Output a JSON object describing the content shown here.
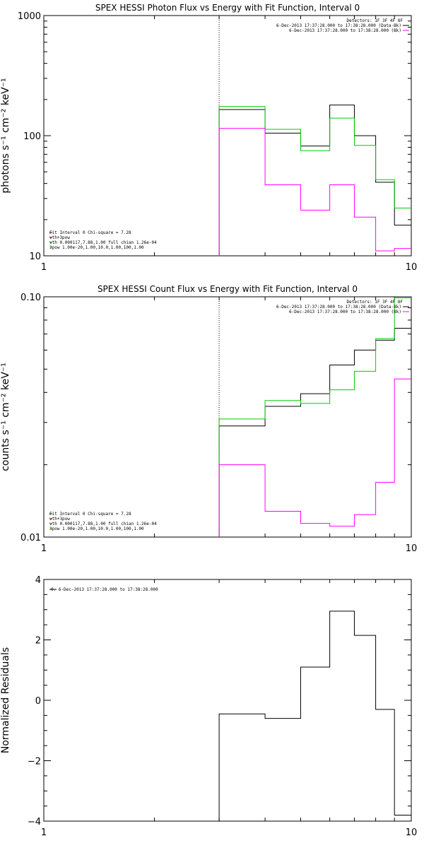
{
  "chart_data": [
    {
      "type": "line",
      "title": "SPEX HESSI Photon Flux vs Energy with Fit Function, Interval 0",
      "xlabel": "",
      "ylabel": "photons s⁻¹ cm⁻² keV⁻¹",
      "xlim": [
        1,
        10
      ],
      "ylim": [
        10,
        1000
      ],
      "xscale": "log",
      "yscale": "log",
      "x_ticks": [
        "1",
        "10"
      ],
      "y_ticks": [
        {
          "value": 10,
          "label": "10"
        },
        {
          "value": 100,
          "label": "100"
        },
        {
          "value": 1000,
          "label": "1000"
        }
      ],
      "vline_x": 3.0,
      "legend_header": "Detectors: 1F 3F 4F 8F",
      "legend": [
        {
          "text": "6-Dec-2013 17:37:28.000 to 17:38:28.000 (Data-Bk)",
          "color": "#000000"
        },
        {
          "text": "6-Dec-2013 17:37:28.000 to 17:38:28.000 (Bk)",
          "color": "#ff00ff"
        }
      ],
      "fit_info": [
        {
          "text": "Fit Interval 0   Chi-square = 7.28",
          "color": "#000000"
        },
        {
          "text": "vth+3pow",
          "color": "#ff0000"
        },
        {
          "text": "vth 0.000117,7.88,1.00  full chian 1.26e-04",
          "color": "#00cc00"
        },
        {
          "text": "3pow 1.00e-20,1.00,10.0,1.00,100,1.00",
          "color": "#cccc00"
        }
      ],
      "bin_edges": [
        3.0,
        4.0,
        5.0,
        6.0,
        7.0,
        8.0,
        9.0,
        10.0
      ],
      "series": [
        {
          "name": "6-Dec-2013 17:37:28.000 to 17:38:28.000 (Data-Bk)",
          "color": "#000000",
          "values": [
            165,
            105,
            82,
            180,
            100,
            41,
            18
          ]
        },
        {
          "name": "vth+3pow",
          "color": "#00cc00",
          "values": [
            175,
            113,
            75,
            140,
            83,
            43,
            25
          ]
        },
        {
          "name": "6-Dec-2013 17:37:28.000 to 17:38:28.000 (Bk)",
          "color": "#ff00ff",
          "values": [
            115,
            39,
            24,
            39,
            21,
            11,
            11.5
          ]
        }
      ]
    },
    {
      "type": "line",
      "title": "SPEX HESSI Count Flux vs Energy with Fit Function, Interval 0",
      "xlabel": "",
      "ylabel": "counts s⁻¹ cm⁻² keV⁻¹",
      "xlim": [
        1,
        10
      ],
      "ylim": [
        0.01,
        0.1
      ],
      "xscale": "log",
      "yscale": "log",
      "x_ticks": [
        "1",
        "10"
      ],
      "y_ticks": [
        {
          "value": 0.01,
          "label": "0.01"
        },
        {
          "value": 0.1,
          "label": "0.10"
        }
      ],
      "vline_x": 3.0,
      "legend_header": "Detectors: 1F 3F 4F 8F",
      "legend": [
        {
          "text": "6-Dec-2013 17:37:28.000 to 17:38:28.000 (Data-Bk)",
          "color": "#000000"
        },
        {
          "text": "6-Dec-2013 17:37:28.000 to 17:38:28.000 (Bk)",
          "color": "#ff00ff"
        }
      ],
      "fit_info": [
        {
          "text": "Fit Interval 0   Chi-square = 7.28",
          "color": "#000000"
        },
        {
          "text": "vth+3pow",
          "color": "#ff0000"
        },
        {
          "text": "vth 0.000117,7.88,1.00  full chian 1.26e-04",
          "color": "#00cc00"
        },
        {
          "text": "3pow 1.00e-20,1.00,10.0,1.00,100,1.00",
          "color": "#cccc00"
        }
      ],
      "bin_edges": [
        3.0,
        4.0,
        5.0,
        6.0,
        7.0,
        8.0,
        9.0,
        10.0
      ],
      "series": [
        {
          "name": "6-Dec-2013 17:37:28.000 to 17:38:28.000 (Data-Bk)",
          "color": "#000000",
          "values": [
            0.029,
            0.035,
            0.0395,
            0.052,
            0.06,
            0.066,
            0.074
          ]
        },
        {
          "name": "vth+3pow",
          "color": "#00cc00",
          "values": [
            0.031,
            0.037,
            0.036,
            0.041,
            0.049,
            0.067,
            0.099
          ]
        },
        {
          "name": "6-Dec-2013 17:37:28.000 to 17:38:28.000 (Bk)",
          "color": "#ff00ff",
          "values": [
            0.02,
            0.0128,
            0.0114,
            0.0111,
            0.0124,
            0.0169,
            0.0455
          ]
        }
      ]
    },
    {
      "type": "line",
      "title": "",
      "xlabel": "",
      "ylabel": "Normalized Residuals",
      "xlim": [
        1,
        10
      ],
      "ylim": [
        -4,
        4
      ],
      "xscale": "log",
      "yscale": "linear",
      "x_ticks": [
        "1",
        "10"
      ],
      "y_ticks": [
        {
          "value": -4,
          "label": "−4"
        },
        {
          "value": -2,
          "label": "−2"
        },
        {
          "value": 0,
          "label": "0"
        },
        {
          "value": 2,
          "label": "2"
        },
        {
          "value": 4,
          "label": "4"
        }
      ],
      "legend": [
        {
          "text": "0.  6-Dec-2013 17:37:28.000 to 17:38:28.000",
          "color": "#000000"
        }
      ],
      "bin_edges": [
        3.0,
        4.0,
        5.0,
        6.0,
        7.0,
        8.0,
        9.0,
        10.0
      ],
      "series": [
        {
          "name": "0.  6-Dec-2013 17:37:28.000 to 17:38:28.000",
          "color": "#000000",
          "values": [
            -0.45,
            -0.6,
            1.1,
            2.95,
            2.15,
            -0.3,
            -3.8
          ]
        }
      ]
    }
  ]
}
